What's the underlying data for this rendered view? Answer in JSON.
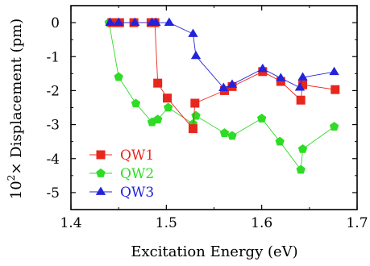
{
  "chart_data": {
    "type": "scatter",
    "xlabel": "Excitation Energy (eV)",
    "ylabel_prefix": "10",
    "ylabel_exponent": "2",
    "ylabel_suffix": "× Displacement (pm)",
    "xlim": [
      1.4,
      1.7
    ],
    "ylim": [
      -5.5,
      0.5
    ],
    "x_ticks": [
      "1.4",
      "1.5",
      "1.6",
      "1.7"
    ],
    "x_tick_values": [
      1.4,
      1.5,
      1.6,
      1.7
    ],
    "y_ticks": [
      "0",
      "-1",
      "-2",
      "-3",
      "-4",
      "-5"
    ],
    "y_tick_values": [
      0,
      -1,
      -2,
      -3,
      -4,
      -5
    ],
    "grid": false,
    "legend_position": "bottom-left",
    "series": [
      {
        "name": "QW1",
        "color": "#e8271c",
        "marker": "square",
        "x": [
          1.443,
          1.451,
          1.466,
          1.484,
          1.488,
          1.491,
          1.501,
          1.528,
          1.53,
          1.561,
          1.569,
          1.601,
          1.62,
          1.641,
          1.643,
          1.677
        ],
        "y": [
          0.0,
          0.0,
          0.0,
          0.0,
          0.0,
          -1.78,
          -2.22,
          -3.12,
          -2.37,
          -2.0,
          -1.88,
          -1.44,
          -1.73,
          -2.28,
          -1.83,
          -1.97
        ]
      },
      {
        "name": "QW2",
        "color": "#2edc25",
        "marker": "pentagon",
        "x": [
          1.44,
          1.45,
          1.468,
          1.485,
          1.491,
          1.502,
          1.528,
          1.531,
          1.561,
          1.569,
          1.6,
          1.619,
          1.641,
          1.643,
          1.676
        ],
        "y": [
          0.0,
          -1.6,
          -2.38,
          -2.93,
          -2.85,
          -2.5,
          -2.98,
          -2.74,
          -3.25,
          -3.33,
          -2.82,
          -3.5,
          -4.33,
          -3.72,
          -3.06
        ]
      },
      {
        "name": "QW3",
        "color": "#2323dc",
        "marker": "triangle",
        "x": [
          1.441,
          1.45,
          1.467,
          1.485,
          1.489,
          1.503,
          1.528,
          1.531,
          1.56,
          1.569,
          1.601,
          1.62,
          1.64,
          1.643,
          1.676
        ],
        "y": [
          0.0,
          0.0,
          0.0,
          0.0,
          0.0,
          0.0,
          -0.33,
          -0.98,
          -1.92,
          -1.82,
          -1.36,
          -1.63,
          -1.91,
          -1.61,
          -1.45
        ]
      }
    ]
  }
}
